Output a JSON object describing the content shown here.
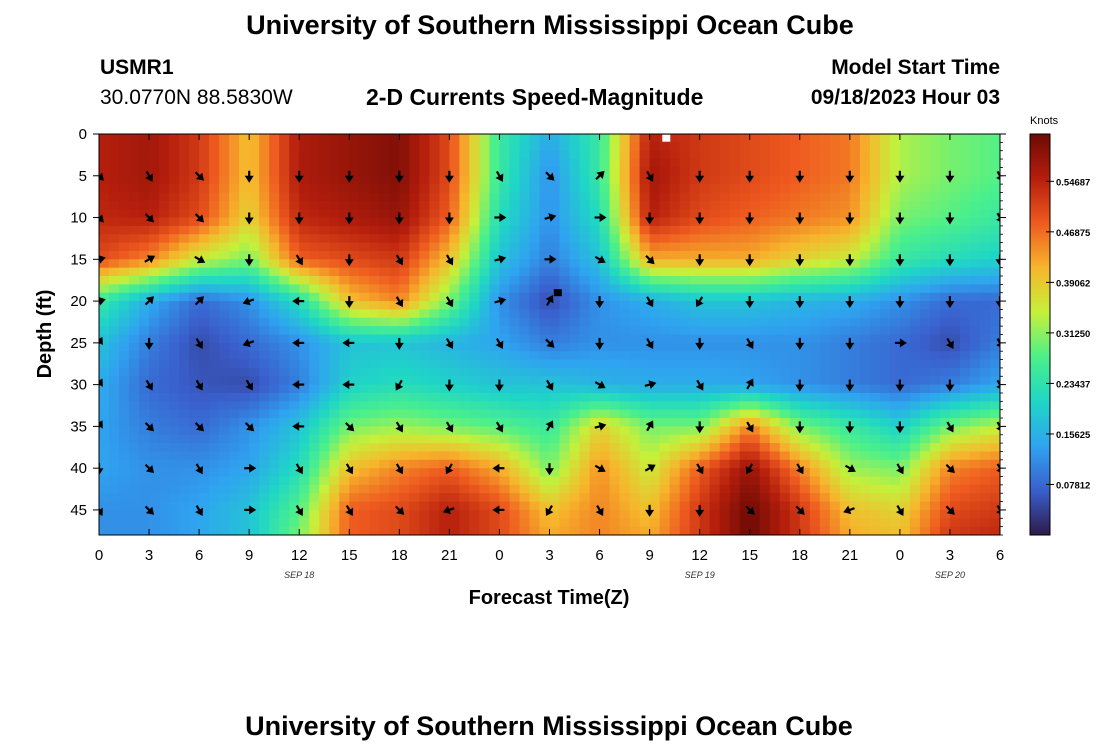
{
  "page": {
    "title_top": "University of Southern Mississippi Ocean Cube",
    "title_bottom": "University of Southern Mississippi Ocean Cube",
    "station_id": "USMR1",
    "station_coords": "30.0770N  88.5830W",
    "plot_title": "2-D Currents Speed-Magnitude",
    "model_start_label": "Model Start Time",
    "model_start_value": "09/18/2023 Hour 03"
  },
  "chart_data": {
    "type": "heatmap",
    "title": "2-D Currents Speed-Magnitude",
    "xlabel": "Forecast Time(Z)",
    "ylabel": "Depth (ft)",
    "x_ticks": [
      "0",
      "3",
      "6",
      "9",
      "12",
      "15",
      "18",
      "21",
      "0",
      "3",
      "6",
      "9",
      "12",
      "15",
      "18",
      "21",
      "0",
      "3",
      "6"
    ],
    "date_labels": [
      {
        "tick_index": 4,
        "text": "SEP 18"
      },
      {
        "tick_index": 12,
        "text": "SEP 19"
      },
      {
        "tick_index": 17,
        "text": "SEP 20"
      }
    ],
    "y_ticks": [
      0,
      5,
      10,
      15,
      20,
      25,
      30,
      35,
      40,
      45
    ],
    "ylim": [
      0,
      48
    ],
    "xlim_hours": [
      0,
      54
    ],
    "colorbar": {
      "label": "Knots",
      "ticks": [
        "0.54687",
        "0.46875",
        "0.39062",
        "0.31250",
        "0.23437",
        "0.15625",
        "0.07812"
      ],
      "range": [
        0,
        0.62
      ],
      "colors": [
        "#2d1a4a",
        "#3a5fcd",
        "#2fa3f0",
        "#1fd6c6",
        "#4cf08a",
        "#c6f03a",
        "#f7b52c",
        "#ee5a1f",
        "#b51e0c",
        "#6e0a05"
      ]
    },
    "speed_grid": {
      "hours": [
        0,
        3,
        6,
        9,
        12,
        15,
        18,
        21,
        24,
        27,
        30,
        33,
        36,
        39,
        42,
        45,
        48,
        51,
        54
      ],
      "depths": [
        0,
        5,
        10,
        15,
        20,
        25,
        30,
        35,
        40,
        45,
        48
      ],
      "values": [
        [
          0.55,
          0.57,
          0.52,
          0.4,
          0.56,
          0.58,
          0.6,
          0.5,
          0.25,
          0.15,
          0.25,
          0.55,
          0.52,
          0.5,
          0.48,
          0.46,
          0.33,
          0.3,
          0.28
        ],
        [
          0.55,
          0.57,
          0.52,
          0.4,
          0.56,
          0.58,
          0.6,
          0.5,
          0.25,
          0.12,
          0.25,
          0.57,
          0.52,
          0.5,
          0.48,
          0.46,
          0.33,
          0.3,
          0.28
        ],
        [
          0.54,
          0.55,
          0.5,
          0.38,
          0.54,
          0.56,
          0.58,
          0.48,
          0.22,
          0.12,
          0.22,
          0.55,
          0.5,
          0.48,
          0.46,
          0.44,
          0.3,
          0.28,
          0.25
        ],
        [
          0.5,
          0.45,
          0.35,
          0.3,
          0.48,
          0.5,
          0.52,
          0.4,
          0.18,
          0.1,
          0.18,
          0.42,
          0.42,
          0.42,
          0.38,
          0.35,
          0.25,
          0.22,
          0.2
        ],
        [
          0.25,
          0.15,
          0.08,
          0.12,
          0.22,
          0.4,
          0.45,
          0.3,
          0.12,
          0.05,
          0.12,
          0.15,
          0.18,
          0.18,
          0.16,
          0.15,
          0.12,
          0.08,
          0.08
        ],
        [
          0.18,
          0.1,
          0.05,
          0.08,
          0.12,
          0.18,
          0.18,
          0.16,
          0.14,
          0.1,
          0.12,
          0.12,
          0.12,
          0.12,
          0.12,
          0.1,
          0.08,
          0.05,
          0.1
        ],
        [
          0.15,
          0.08,
          0.06,
          0.05,
          0.1,
          0.2,
          0.22,
          0.2,
          0.18,
          0.18,
          0.16,
          0.15,
          0.15,
          0.14,
          0.12,
          0.1,
          0.08,
          0.1,
          0.14
        ],
        [
          0.14,
          0.1,
          0.08,
          0.12,
          0.18,
          0.3,
          0.32,
          0.3,
          0.28,
          0.25,
          0.38,
          0.3,
          0.3,
          0.45,
          0.3,
          0.25,
          0.2,
          0.3,
          0.34
        ],
        [
          0.14,
          0.12,
          0.12,
          0.14,
          0.22,
          0.4,
          0.45,
          0.48,
          0.42,
          0.3,
          0.44,
          0.35,
          0.48,
          0.58,
          0.45,
          0.32,
          0.3,
          0.45,
          0.48
        ],
        [
          0.12,
          0.12,
          0.14,
          0.18,
          0.28,
          0.48,
          0.5,
          0.55,
          0.5,
          0.4,
          0.45,
          0.4,
          0.52,
          0.62,
          0.52,
          0.4,
          0.38,
          0.5,
          0.52
        ],
        [
          0.12,
          0.12,
          0.14,
          0.18,
          0.3,
          0.48,
          0.5,
          0.55,
          0.5,
          0.42,
          0.45,
          0.42,
          0.52,
          0.62,
          0.52,
          0.42,
          0.4,
          0.52,
          0.54
        ]
      ]
    },
    "markers": [
      {
        "hour": 34,
        "depth": 0.5,
        "color": "#ffffff"
      },
      {
        "hour": 27.5,
        "depth": 19,
        "color": "#000000"
      }
    ],
    "vectors": {
      "hours": [
        0,
        3,
        6,
        9,
        12,
        15,
        18,
        21,
        24,
        27,
        30,
        33,
        36,
        39,
        42,
        45,
        48,
        51,
        54
      ],
      "depths": [
        5,
        10,
        15,
        20,
        25,
        30,
        35,
        40,
        45
      ],
      "directions_deg": [
        [
          315,
          300,
          315,
          270,
          270,
          270,
          270,
          270,
          300,
          315,
          45,
          300,
          270,
          270,
          270,
          270,
          270,
          270,
          300
        ],
        [
          315,
          315,
          315,
          270,
          270,
          270,
          270,
          270,
          0,
          15,
          0,
          270,
          270,
          270,
          270,
          270,
          270,
          270,
          300
        ],
        [
          15,
          30,
          330,
          270,
          300,
          270,
          300,
          300,
          15,
          0,
          330,
          315,
          270,
          270,
          270,
          270,
          270,
          270,
          270
        ],
        [
          15,
          45,
          45,
          200,
          180,
          270,
          300,
          300,
          15,
          60,
          270,
          300,
          240,
          270,
          270,
          270,
          270,
          270,
          270
        ],
        [
          60,
          270,
          300,
          200,
          180,
          180,
          270,
          300,
          300,
          315,
          270,
          300,
          270,
          300,
          270,
          270,
          0,
          300,
          300
        ],
        [
          60,
          300,
          300,
          300,
          180,
          180,
          240,
          270,
          270,
          300,
          330,
          15,
          300,
          60,
          270,
          270,
          270,
          270,
          300
        ],
        [
          60,
          315,
          315,
          315,
          180,
          315,
          300,
          300,
          300,
          60,
          15,
          60,
          270,
          300,
          270,
          270,
          270,
          300,
          300
        ],
        [
          270,
          315,
          300,
          0,
          300,
          300,
          300,
          240,
          180,
          270,
          330,
          30,
          300,
          240,
          300,
          330,
          300,
          315,
          300
        ],
        [
          300,
          315,
          300,
          0,
          300,
          300,
          315,
          200,
          180,
          240,
          300,
          270,
          270,
          315,
          315,
          200,
          300,
          315,
          300
        ]
      ]
    }
  }
}
